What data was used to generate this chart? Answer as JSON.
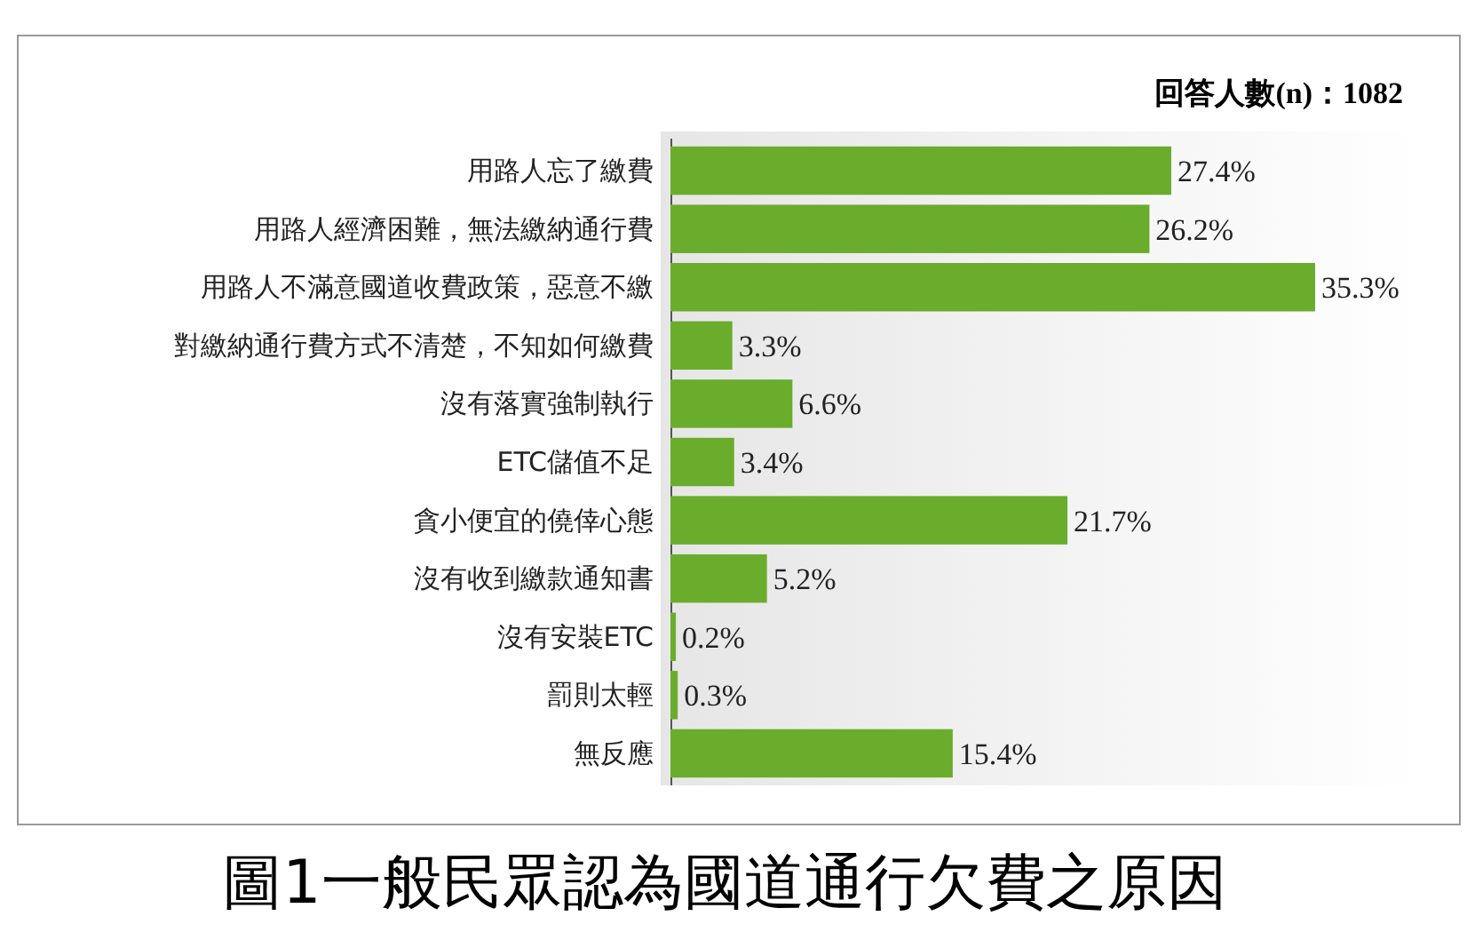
{
  "chart_data": {
    "type": "bar",
    "orientation": "horizontal",
    "title": "圖1一般民眾認為國道通行欠費之原因",
    "annotations": [
      "回答人數(n)：1082"
    ],
    "categories": [
      "用路人忘了繳費",
      "用路人經濟困難，無法繳納通行費",
      "用路人不滿意國道收費政策，惡意不繳",
      "對繳納通行費方式不清楚，不知如何繳費",
      "沒有落實強制執行",
      "ETC儲值不足",
      "貪小便宜的僥倖心態",
      "沒有收到繳款通知書",
      "沒有安裝ETC",
      "罰則太輕",
      "無反應"
    ],
    "values": [
      27.4,
      26.2,
      35.3,
      3.3,
      6.6,
      3.4,
      21.7,
      5.2,
      0.2,
      0.3,
      15.4
    ],
    "value_labels": [
      "27.4%",
      "26.2%",
      "35.3%",
      "3.3%",
      "6.6%",
      "3.4%",
      "21.7%",
      "5.2%",
      "0.2%",
      "0.3%",
      "15.4%"
    ],
    "color": "#6aac2c"
  }
}
